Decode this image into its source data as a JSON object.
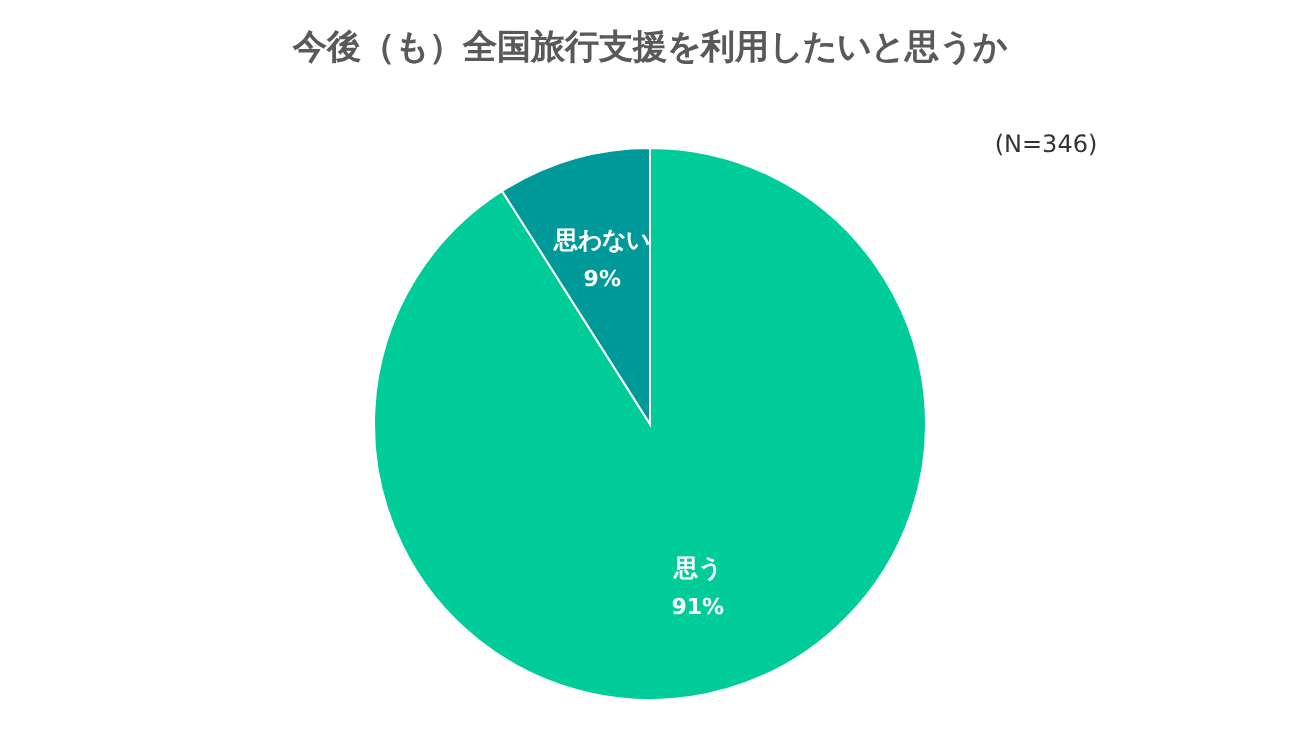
{
  "chart_data": {
    "type": "pie",
    "title": "今後（も）全国旅行支援を利用したいと思うか",
    "annotations": [
      "(N=346)"
    ],
    "categories": [
      "思う",
      "思わない"
    ],
    "values": [
      91,
      9
    ],
    "value_labels": [
      "91%",
      "9%"
    ],
    "colors": [
      "#00cc99",
      "#009999"
    ]
  }
}
